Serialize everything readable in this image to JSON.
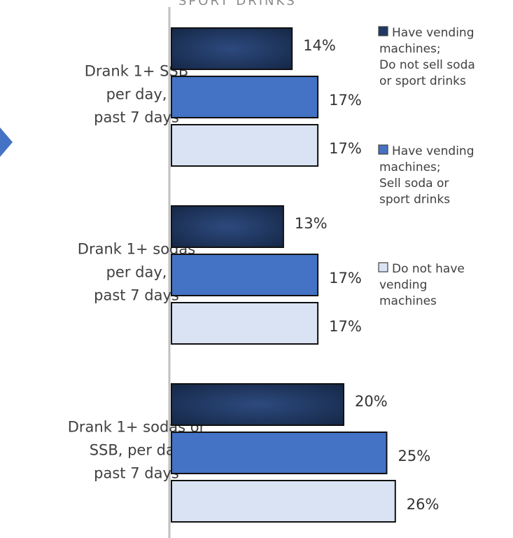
{
  "chart_data": {
    "type": "bar",
    "orientation": "horizontal",
    "title": "SPORT DRINKS",
    "categories": [
      [
        "Drank 1+ SSB",
        "per day,",
        "past 7 days"
      ],
      [
        "Drank 1+ sodas",
        "per day,",
        "past 7 days"
      ],
      [
        "Drank 1+ sodas or",
        "SSB, per day",
        "past 7 days"
      ]
    ],
    "series": [
      {
        "name": "Have vending machines; Do not sell soda or sport drinks",
        "values": [
          14,
          13,
          20
        ],
        "color": "#1f3864",
        "legend_lines": [
          "Have vending",
          "machines;",
          "Do not sell soda",
          "or sport drinks"
        ]
      },
      {
        "name": "Have vending machines; Sell soda or sport drinks",
        "values": [
          17,
          17,
          25
        ],
        "color": "#4472c4",
        "legend_lines": [
          "Have vending",
          "machines;",
          "Sell soda or",
          "sport drinks"
        ]
      },
      {
        "name": "Do not have vending machines",
        "values": [
          17,
          17,
          26
        ],
        "color": "#dae3f3",
        "legend_lines": [
          "Do not have",
          "vending",
          "machines"
        ]
      }
    ],
    "value_suffix": "%",
    "xlim": [
      0,
      26
    ],
    "legend_position": "right",
    "grid": false
  }
}
